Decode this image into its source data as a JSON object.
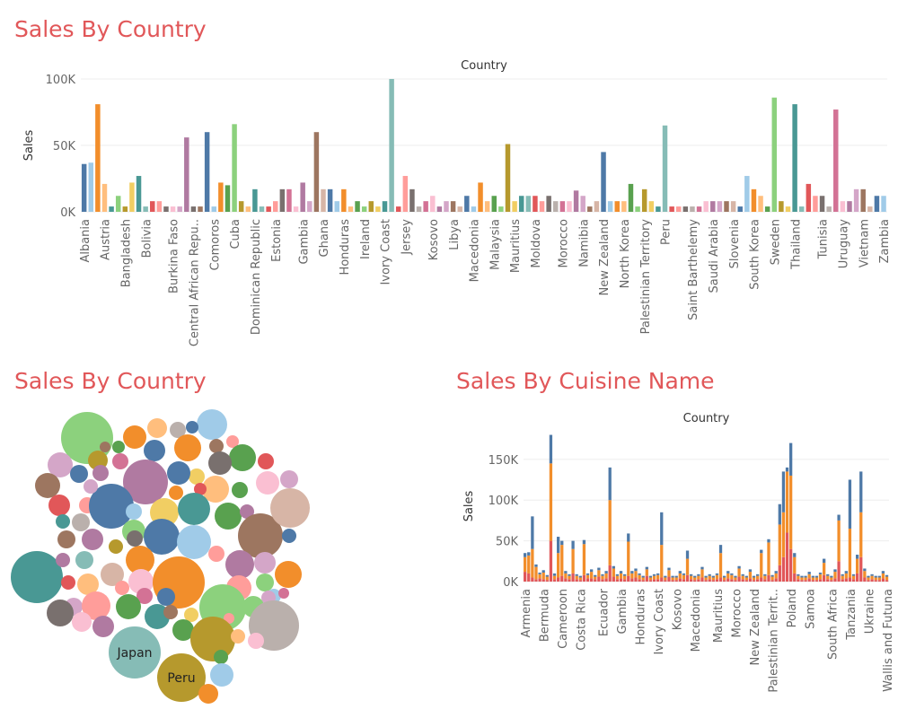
{
  "dashboard": {
    "titles": {
      "top": "Sales By Country",
      "bubble": "Sales By Country",
      "cuisine": "Sales By Cuisine Name"
    }
  },
  "palette": [
    "#4e79a7",
    "#a0cbe8",
    "#f28e2b",
    "#ffbe7d",
    "#59a14f",
    "#8cd17d",
    "#b6992d",
    "#f1ce63",
    "#499894",
    "#86bcb6",
    "#e15759",
    "#ff9d9a",
    "#79706e",
    "#bab0ac",
    "#d37295",
    "#fabfd2",
    "#b07aa1",
    "#d4a6c8",
    "#9d7660",
    "#d7b5a6"
  ],
  "chart_data": [
    {
      "type": "bar",
      "title": "Sales By Country",
      "xlabel": "Country",
      "ylabel": "Sales",
      "ylim": [
        0,
        100000
      ],
      "yticks": [
        0,
        50000,
        100000
      ],
      "ytick_labels": [
        "0K",
        "50K",
        "100K"
      ],
      "grid": true,
      "labeled_categories": [
        "Albania",
        "Austria",
        "Bangladesh",
        "Bolivia",
        "Burkina Faso",
        "Central African Repu..",
        "Comoros",
        "Cuba",
        "Dominican Republic",
        "Estonia",
        "Gambia",
        "Ghana",
        "Honduras",
        "Ireland",
        "Ivory Coast",
        "Jersey",
        "Kosovo",
        "Libya",
        "Macedonia",
        "Malaysia",
        "Mauritius",
        "Moldova",
        "Morocco",
        "Namibia",
        "New Zealand",
        "North Korea",
        "Palestinian Territory",
        "Peru",
        "Saint Barthelemy",
        "Saudi Arabia",
        "Slovenia",
        "South Korea",
        "Sweden",
        "Thailand",
        "Tunisia",
        "Uruguay",
        "Vietnam",
        "Zambia"
      ],
      "values": [
        36000,
        37000,
        81000,
        21000,
        4000,
        12000,
        4000,
        22000,
        27000,
        4000,
        8000,
        8000,
        4000,
        4000,
        4000,
        56000,
        4000,
        4000,
        60000,
        4000,
        22000,
        20000,
        66000,
        8000,
        4000,
        17000,
        4000,
        4000,
        8000,
        17000,
        17000,
        4000,
        22000,
        8000,
        60000,
        17000,
        17000,
        8000,
        17000,
        4000,
        8000,
        4000,
        8000,
        4000,
        8000,
        100000,
        4000,
        27000,
        17000,
        4000,
        8000,
        12000,
        4000,
        8000,
        8000,
        4000,
        12000,
        4000,
        22000,
        8000,
        12000,
        4000,
        51000,
        8000,
        12000,
        12000,
        12000,
        8000,
        12000,
        8000,
        8000,
        8000,
        16000,
        12000,
        4000,
        8000,
        45000,
        8000,
        8000,
        8000,
        21000,
        4000,
        17000,
        8000,
        4000,
        65000,
        4000,
        4000,
        4000,
        4000,
        4000,
        8000,
        8000,
        8000,
        8000,
        8000,
        4000,
        27000,
        17000,
        12000,
        4000,
        86000,
        8000,
        4000,
        81000,
        4000,
        21000,
        12000,
        12000,
        4000,
        77000,
        8000,
        8000,
        17000,
        17000,
        4000,
        12000,
        12000
      ],
      "bar_colors": [
        "#4e79a7",
        "#a0cbe8",
        "#f28e2b",
        "#ffbe7d",
        "#499894",
        "#8cd17d",
        "#b6992d",
        "#f1ce63",
        "#499894",
        "#86bcb6",
        "#e15759",
        "#ff9d9a",
        "#79706e",
        "#fabfd2",
        "#d4a6c8",
        "#b07aa1",
        "#79706e",
        "#9d7660",
        "#4e79a7",
        "#a0cbe8",
        "#f28e2b",
        "#59a14f",
        "#8cd17d",
        "#b6992d",
        "#ffbe7d",
        "#499894",
        "#86bcb6",
        "#e15759",
        "#ff9d9a",
        "#79706e",
        "#d37295",
        "#fabfd2",
        "#b07aa1",
        "#d4a6c8",
        "#9d7660",
        "#d7b5a6",
        "#4e79a7",
        "#a0cbe8",
        "#f28e2b",
        "#ffbe7d",
        "#59a14f",
        "#8cd17d",
        "#b6992d",
        "#f1ce63",
        "#499894",
        "#86bcb6",
        "#e15759",
        "#ff9d9a",
        "#79706e",
        "#bab0ac",
        "#d37295",
        "#fabfd2",
        "#b07aa1",
        "#d4a6c8",
        "#9d7660",
        "#d7b5a6",
        "#4e79a7",
        "#a0cbe8",
        "#f28e2b",
        "#ffbe7d",
        "#59a14f",
        "#8cd17d",
        "#b6992d",
        "#f1ce63",
        "#499894",
        "#86bcb6",
        "#e15759",
        "#ff9d9a",
        "#79706e",
        "#bab0ac",
        "#d37295",
        "#fabfd2",
        "#b07aa1",
        "#d4a6c8",
        "#9d7660",
        "#d7b5a6",
        "#4e79a7",
        "#a0cbe8",
        "#f28e2b",
        "#ffbe7d",
        "#59a14f",
        "#8cd17d",
        "#b6992d",
        "#f1ce63",
        "#499894",
        "#86bcb6",
        "#e15759",
        "#ff9d9a",
        "#79706e",
        "#bab0ac",
        "#d37295",
        "#fabfd2",
        "#b07aa1",
        "#d4a6c8",
        "#9d7660",
        "#d7b5a6",
        "#4e79a7",
        "#a0cbe8",
        "#f28e2b",
        "#ffbe7d",
        "#59a14f",
        "#8cd17d",
        "#b6992d",
        "#f1ce63",
        "#499894",
        "#86bcb6",
        "#e15759",
        "#ff9d9a",
        "#79706e",
        "#bab0ac",
        "#d37295",
        "#fabfd2",
        "#b07aa1",
        "#d4a6c8",
        "#9d7660",
        "#d7b5a6",
        "#4e79a7",
        "#a0cbe8"
      ]
    },
    {
      "type": "packed-bubble",
      "title": "Sales By Country",
      "labeled": [
        {
          "label": "Japan"
        },
        {
          "label": "Peru"
        }
      ]
    },
    {
      "type": "bar",
      "stacked": true,
      "title": "Sales By Cuisine Name",
      "xlabel": "Country",
      "ylabel": "Sales",
      "ylim": [
        0,
        185000
      ],
      "yticks": [
        0,
        50000,
        100000,
        150000
      ],
      "ytick_labels": [
        "0K",
        "50K",
        "100K",
        "150K"
      ],
      "labeled_categories": [
        "Armenia",
        "Bermuda",
        "Cameroon",
        "Costa Rica",
        "Ecuador",
        "Gambia",
        "Honduras",
        "Ivory Coast",
        "Kosovo",
        "Macedonia",
        "Mauritius",
        "Morocco",
        "New Zealand",
        "Palestinian Territ..",
        "Poland",
        "Samoa",
        "South Africa",
        "Tanzania",
        "Ukraine",
        "Wallis and Futuna"
      ],
      "series": [
        {
          "name": "",
          "color": "#e15759",
          "values": [
            12000,
            10000,
            5000,
            3000,
            4000,
            3000,
            2000,
            50000,
            3000,
            5000,
            7000,
            4000,
            3000,
            10000,
            3000,
            2000,
            8000,
            4000,
            4000,
            3000,
            6000,
            3000,
            4000,
            20000,
            6000,
            3000,
            4000,
            3000,
            7000,
            4000,
            5000,
            3000,
            2000,
            7000,
            2000,
            3000,
            3000,
            5000,
            2000,
            6000,
            2000,
            2000,
            4000,
            3000,
            8000,
            3000,
            2000,
            3000,
            5000,
            2000,
            3000,
            2000,
            3000,
            5000,
            2000,
            4000,
            3000,
            2000,
            6000,
            3000,
            2000,
            4000,
            2000,
            3000,
            5000,
            3000,
            8000,
            2000,
            4000,
            20000,
            30000,
            60000,
            40000,
            10000,
            3000,
            2000,
            2000,
            4000,
            2000,
            2000,
            3000,
            8000,
            3000,
            2000,
            4000,
            25000,
            3000,
            4000,
            5000,
            3000,
            10000,
            30000,
            5000,
            2000,
            3000,
            2000,
            2000,
            4000,
            2000
          ]
        },
        {
          "name": "",
          "color": "#f28e2b",
          "values": [
            18000,
            22000,
            35000,
            15000,
            5000,
            8000,
            4000,
            95000,
            4000,
            30000,
            38000,
            6000,
            4000,
            30000,
            4000,
            3000,
            38000,
            4000,
            8000,
            3000,
            8000,
            4000,
            6000,
            80000,
            10000,
            4000,
            6000,
            4000,
            42000,
            6000,
            8000,
            5000,
            3000,
            8000,
            3000,
            4000,
            5000,
            40000,
            3000,
            8000,
            3000,
            3000,
            6000,
            5000,
            20000,
            4000,
            3000,
            4000,
            10000,
            3000,
            4000,
            3000,
            5000,
            30000,
            3000,
            6000,
            5000,
            3000,
            10000,
            4000,
            3000,
            8000,
            3000,
            4000,
            30000,
            4000,
            40000,
            4000,
            6000,
            50000,
            55000,
            75000,
            90000,
            20000,
            4000,
            3000,
            3000,
            5000,
            3000,
            3000,
            6000,
            15000,
            4000,
            3000,
            8000,
            50000,
            4000,
            6000,
            60000,
            4000,
            18000,
            55000,
            8000,
            3000,
            4000,
            3000,
            3000,
            6000,
            4000
          ]
        },
        {
          "name": "",
          "color": "#4e79a7",
          "values": [
            5000,
            4000,
            40000,
            3000,
            2000,
            3000,
            2000,
            35000,
            3000,
            20000,
            5000,
            3000,
            2000,
            10000,
            2000,
            2000,
            5000,
            2000,
            3000,
            2000,
            3000,
            2000,
            3000,
            40000,
            3000,
            2000,
            3000,
            2000,
            10000,
            3000,
            3000,
            2000,
            2000,
            3000,
            2000,
            2000,
            2000,
            40000,
            2000,
            3000,
            2000,
            2000,
            3000,
            2000,
            10000,
            2000,
            2000,
            2000,
            3000,
            2000,
            2000,
            2000,
            2000,
            10000,
            2000,
            3000,
            2000,
            2000,
            3000,
            2000,
            2000,
            3000,
            2000,
            2000,
            4000,
            2000,
            4000,
            2000,
            3000,
            25000,
            50000,
            5000,
            40000,
            5000,
            2000,
            2000,
            2000,
            3000,
            2000,
            2000,
            2000,
            5000,
            2000,
            2000,
            3000,
            7000,
            2000,
            3000,
            60000,
            2000,
            5000,
            50000,
            3000,
            2000,
            2000,
            2000,
            2000,
            3000,
            2000
          ]
        }
      ]
    }
  ]
}
